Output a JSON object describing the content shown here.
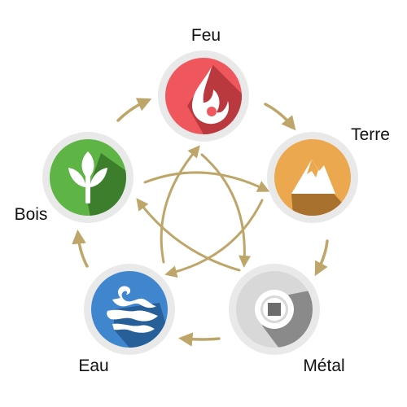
{
  "elements": {
    "fire": {
      "label": "Feu",
      "color": "#f0575d",
      "shadow": "#b9393e",
      "icon": "flame-icon"
    },
    "earth": {
      "label": "Terre",
      "color": "#eba84f",
      "shadow": "#a8722e",
      "icon": "mountain-icon"
    },
    "metal": {
      "label": "Métal",
      "color": "#d8d8d8",
      "shadow": "#8a8a8a",
      "icon": "coin-icon"
    },
    "water": {
      "label": "Eau",
      "color": "#3f86cf",
      "shadow": "#275f99",
      "icon": "wave-icon"
    },
    "wood": {
      "label": "Bois",
      "color": "#5fb446",
      "shadow": "#3d7e2c",
      "icon": "plant-icon"
    }
  },
  "colors": {
    "arrow": "#bea66a",
    "ring": "#e9e9e9"
  }
}
